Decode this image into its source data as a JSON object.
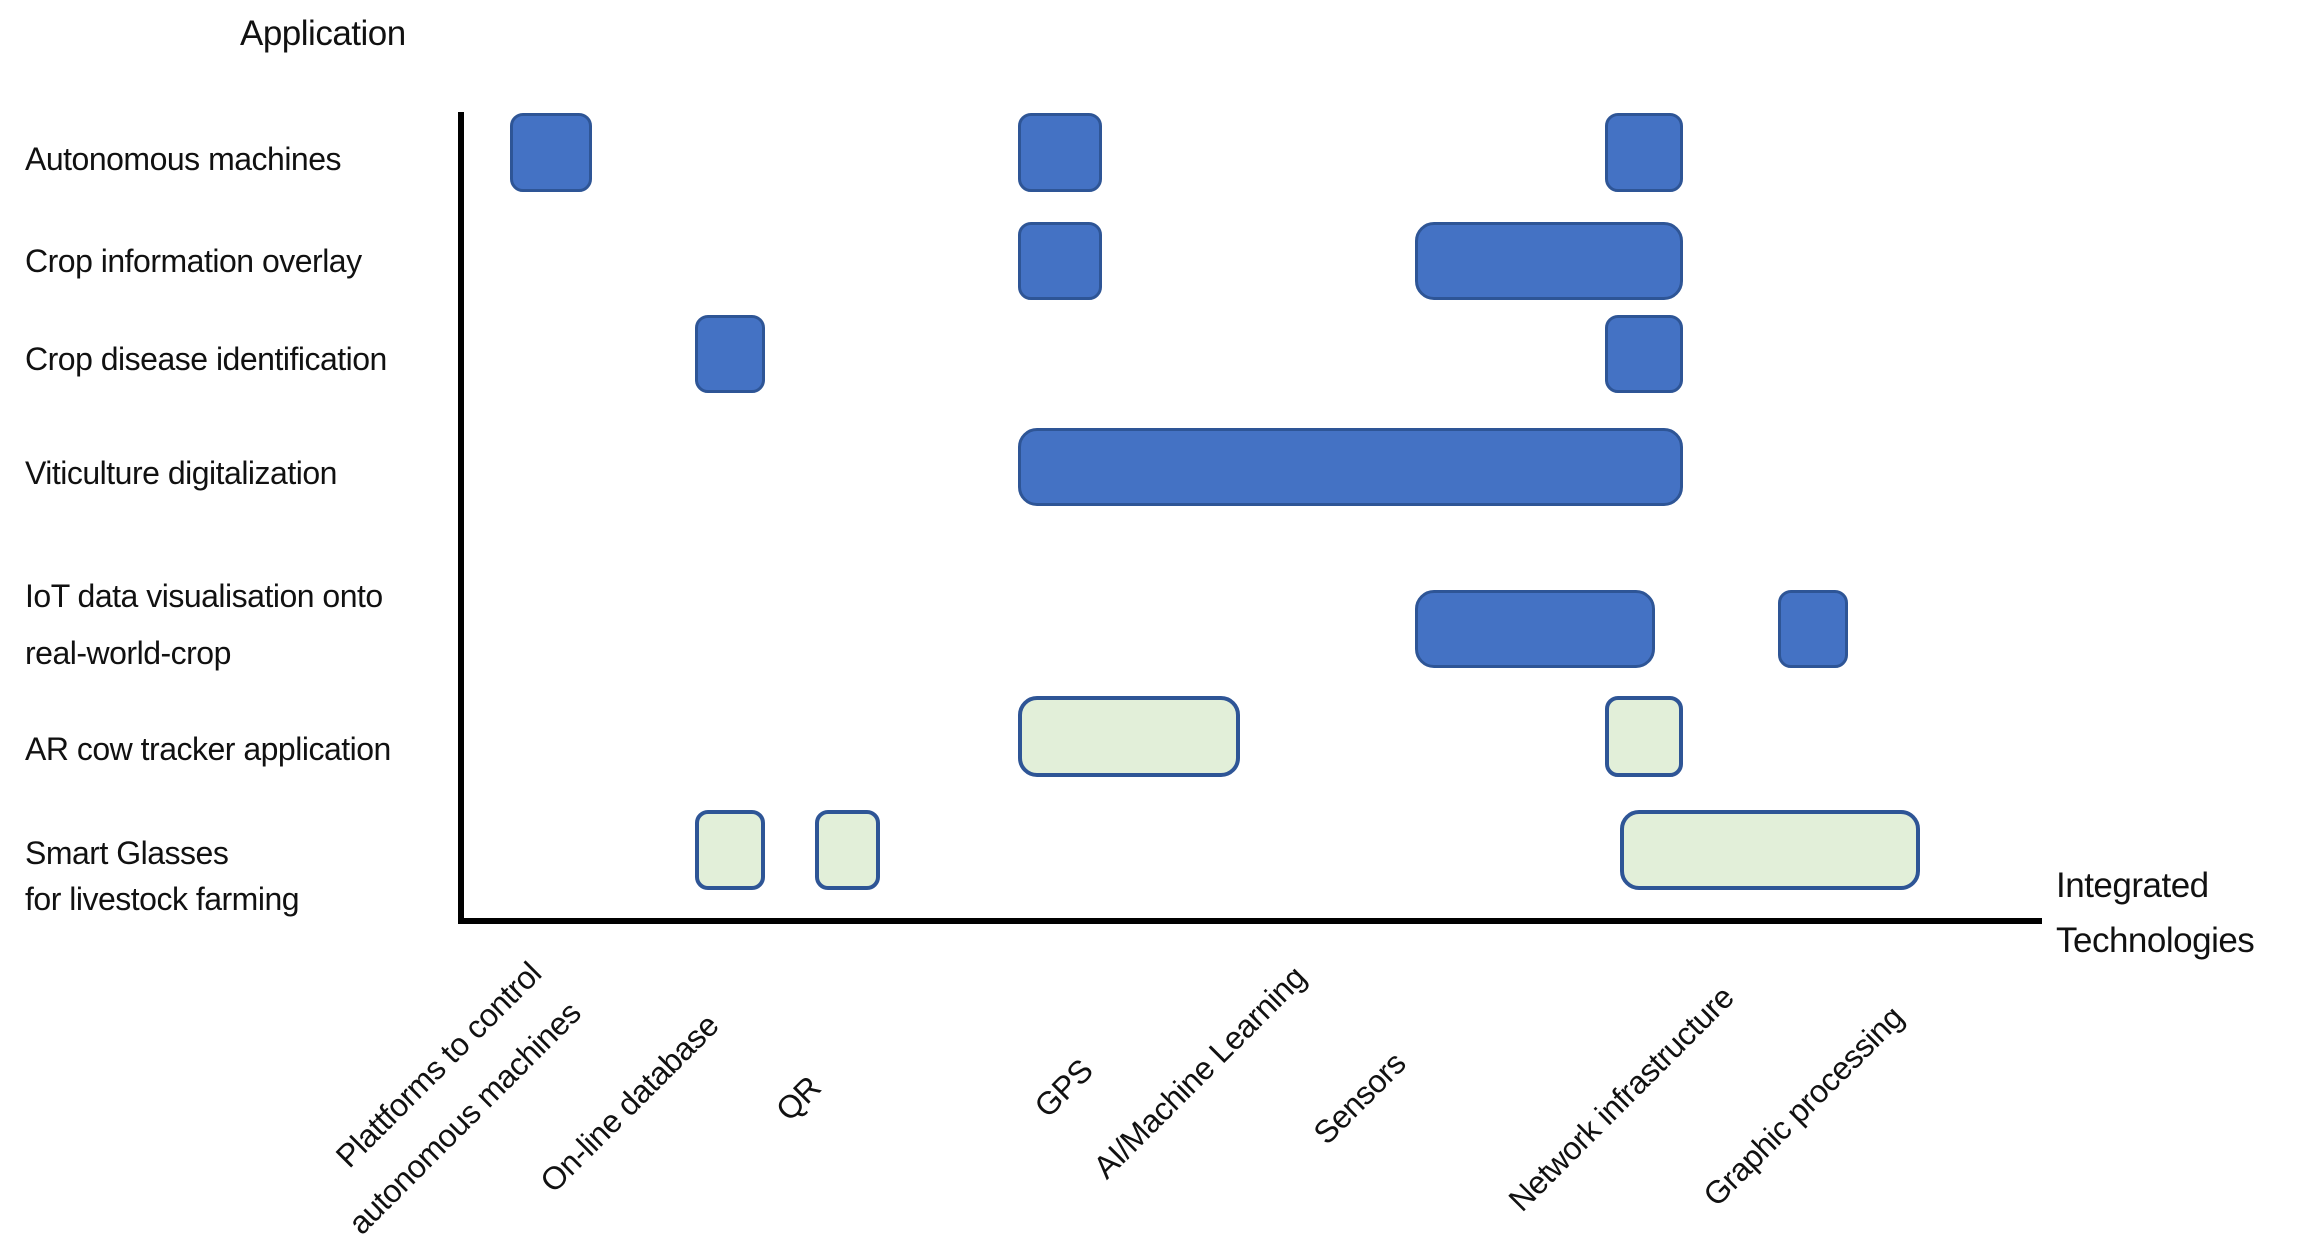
{
  "figure": {
    "y_axis_title": "Application",
    "x_axis_title": "Integrated\nTechnologies"
  },
  "applications": [
    {
      "label": "Autonomous machines"
    },
    {
      "label": "Crop information overlay"
    },
    {
      "label": "Crop disease identification"
    },
    {
      "label": "Viticulture digitalization"
    },
    {
      "label": "IoT data visualisation onto\nreal-world-crop"
    },
    {
      "label": "AR cow tracker application"
    },
    {
      "label": "Smart Glasses\nfor livestock farming"
    }
  ],
  "technologies": [
    {
      "id": "plattforms",
      "label": "Plattforms to control\nautonomous machines"
    },
    {
      "id": "online",
      "label": "On-line database"
    },
    {
      "id": "qr",
      "label": "QR"
    },
    {
      "id": "gps",
      "label": "GPS"
    },
    {
      "id": "aiml",
      "label": "AI/Machine Learning"
    },
    {
      "id": "sensors",
      "label": "Sensors"
    },
    {
      "id": "network",
      "label": "Network infrastructure"
    },
    {
      "id": "graphic",
      "label": "Graphic processing"
    }
  ],
  "chart_data": {
    "type": "heatmap",
    "title": "Application vs Integrated Technologies matrix",
    "rows": [
      "Autonomous machines",
      "Crop information overlay",
      "Crop disease identification",
      "Viticulture digitalization",
      "IoT data visualisation onto real-world-crop",
      "AR cow tracker application",
      "Smart Glasses for livestock farming"
    ],
    "columns": [
      "Plattforms to control autonomous machines",
      "On-line database",
      "QR",
      "GPS",
      "AI/Machine Learning",
      "Sensors",
      "Network infrastructure",
      "Graphic processing"
    ],
    "legend_position": "none",
    "grid": false,
    "marks": [
      {
        "row": 0,
        "col_start": "plattforms",
        "col_end": "plattforms",
        "color": "blue"
      },
      {
        "row": 0,
        "col_start": "gps",
        "col_end": "gps",
        "color": "blue"
      },
      {
        "row": 0,
        "col_start": "network",
        "col_end": "network",
        "color": "blue"
      },
      {
        "row": 1,
        "col_start": "gps",
        "col_end": "gps",
        "color": "blue"
      },
      {
        "row": 1,
        "col_start": "sensors",
        "col_end": "network",
        "color": "blue"
      },
      {
        "row": 2,
        "col_start": "online",
        "col_end": "online",
        "color": "blue"
      },
      {
        "row": 2,
        "col_start": "network",
        "col_end": "network",
        "color": "blue"
      },
      {
        "row": 3,
        "col_start": "gps",
        "col_end": "network",
        "color": "blue"
      },
      {
        "row": 4,
        "col_start": "sensors",
        "col_end": "network",
        "color": "blue"
      },
      {
        "row": 4,
        "col_start": "graphic",
        "col_end": "graphic",
        "color": "blue"
      },
      {
        "row": 5,
        "col_start": "gps",
        "col_end": "aiml",
        "color": "green"
      },
      {
        "row": 5,
        "col_start": "network",
        "col_end": "network",
        "color": "green"
      },
      {
        "row": 6,
        "col_start": "online",
        "col_end": "online",
        "color": "green"
      },
      {
        "row": 6,
        "col_start": "qr",
        "col_end": "qr",
        "color": "green"
      },
      {
        "row": 6,
        "col_start": "network",
        "col_end": "graphic",
        "color": "green"
      }
    ]
  },
  "colors": {
    "blue_fill": "#4472C4",
    "blue_border": "#2E5596",
    "green_fill": "#E2EFD9",
    "green_border": "#2E5596",
    "axis": "#000000"
  }
}
